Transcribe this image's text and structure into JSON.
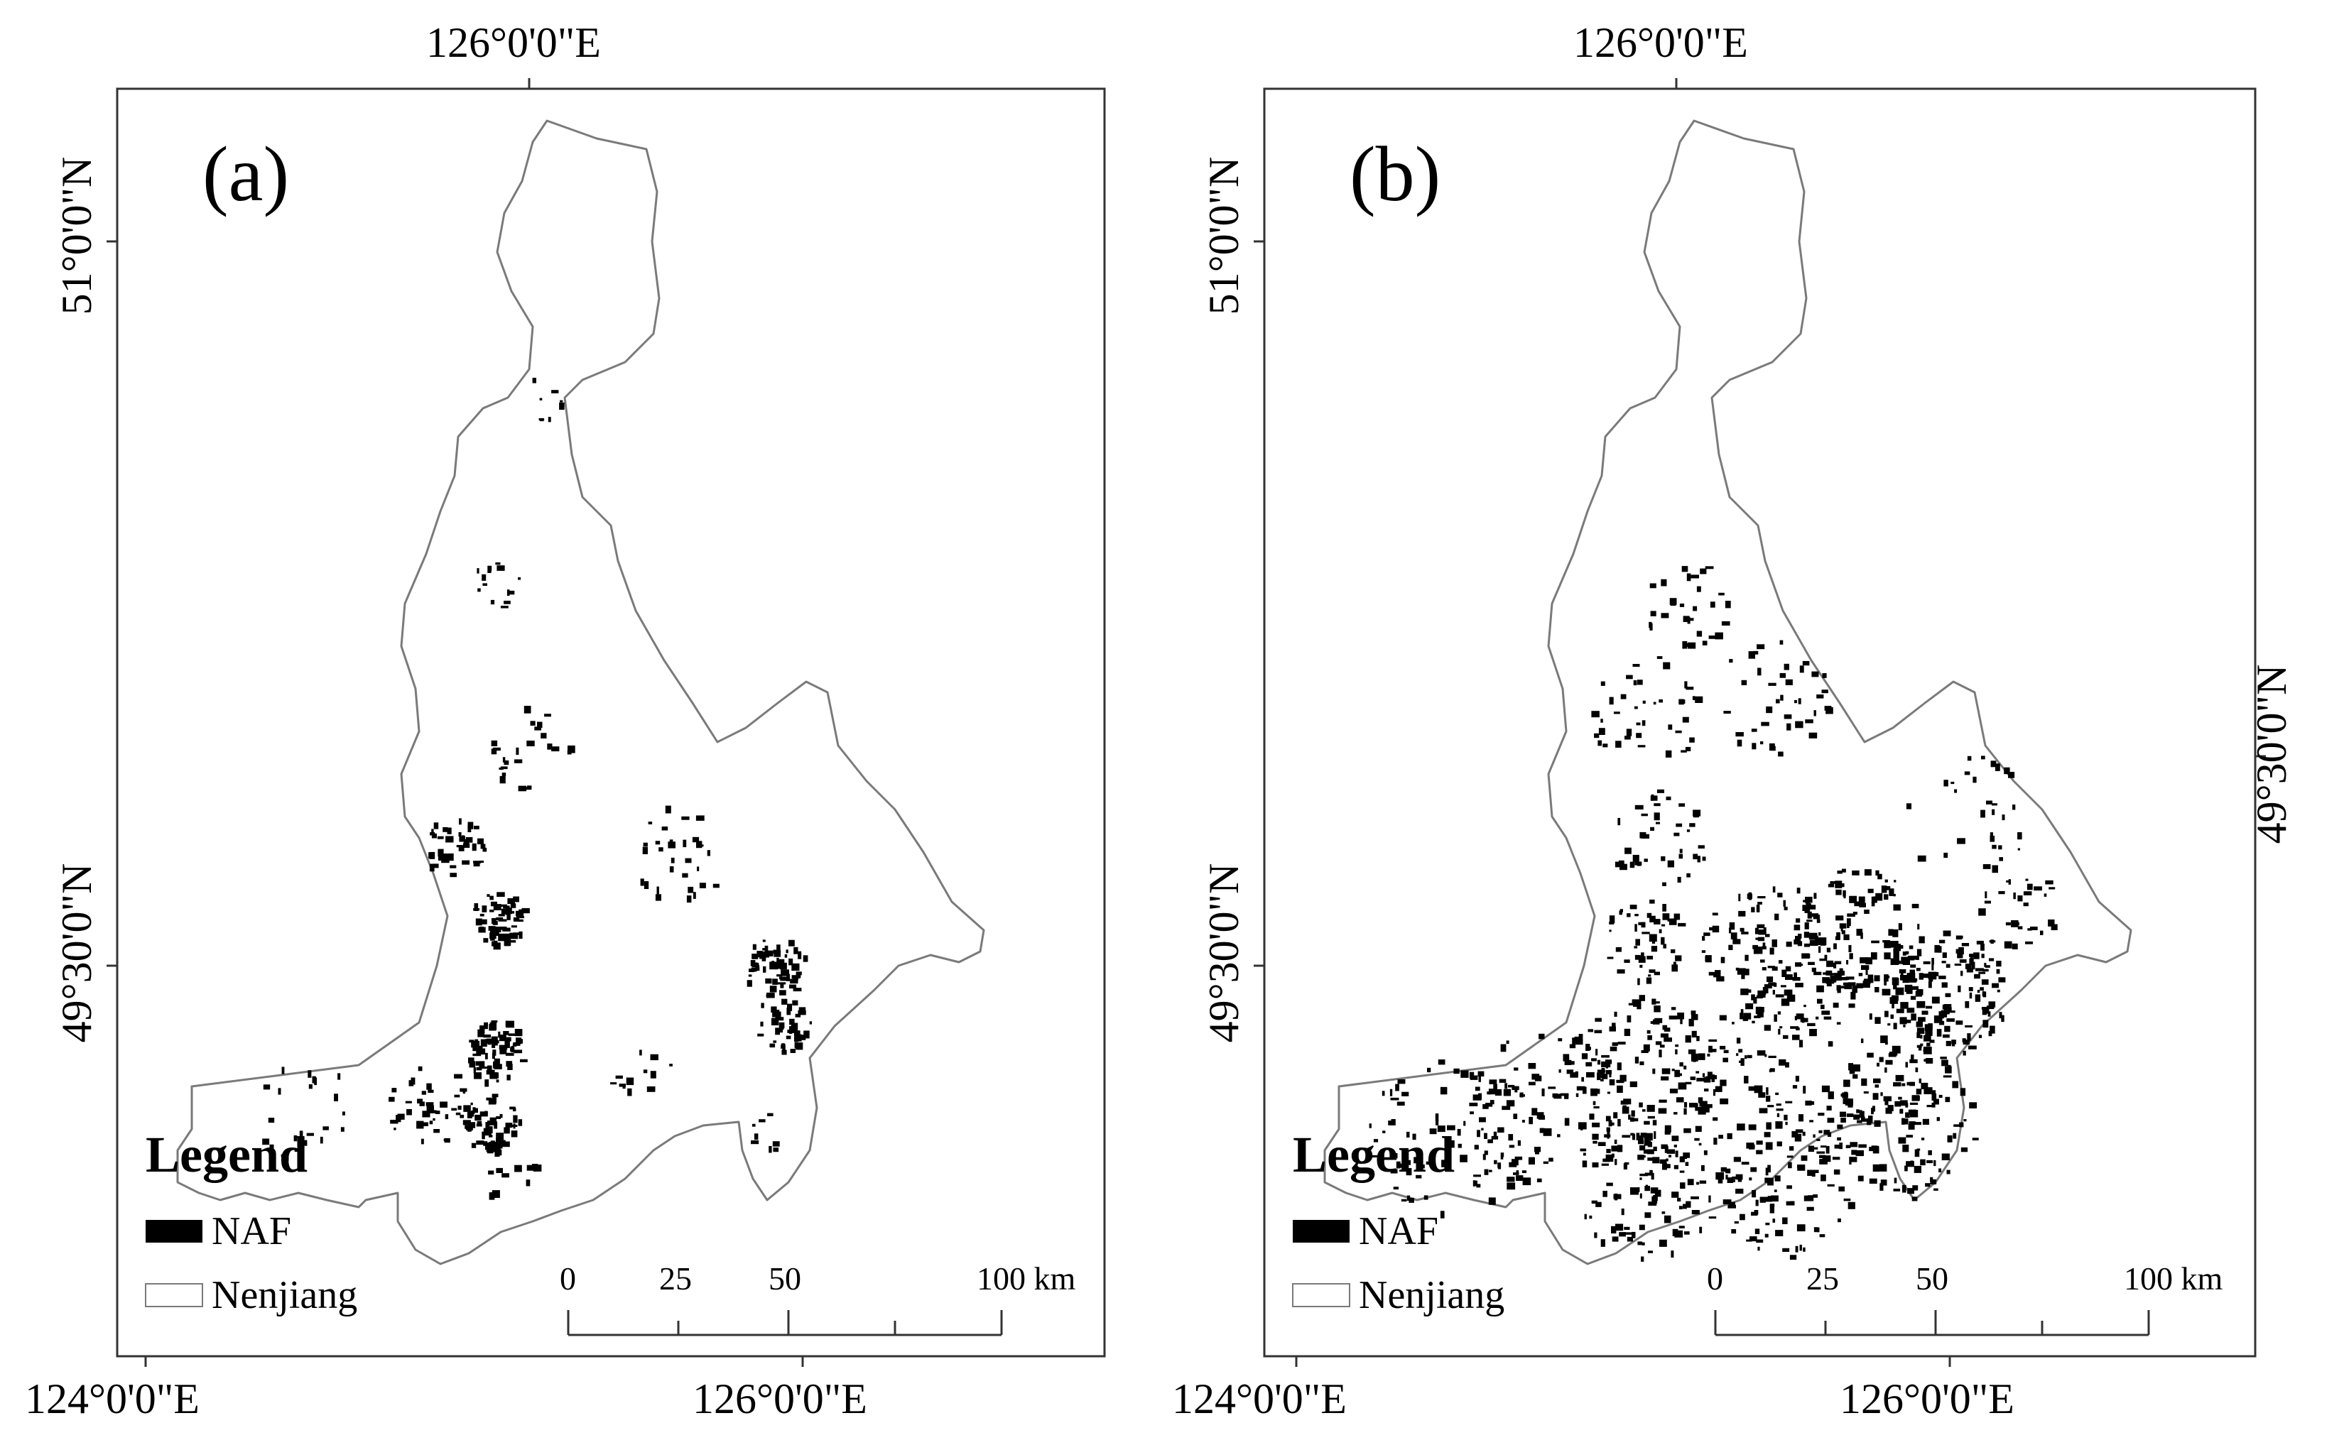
{
  "panels": [
    {
      "id": "a",
      "label": "(a)",
      "coords": {
        "top_lon": "126°0'0\"E",
        "left_lat_upper": "51°0'0\"N",
        "left_lat_lower": "49°30'0\"N",
        "bottom_lon_left": "124°0'0\"E",
        "bottom_lon_right": "126°0'0\"E"
      },
      "legend": {
        "title": "Legend",
        "items": [
          {
            "label": "NAF",
            "swatch": "#000000",
            "kind": "fill"
          },
          {
            "label": "Nenjiang",
            "swatch": "#ffffff",
            "kind": "outline"
          }
        ]
      },
      "scalebar": {
        "ticks": [
          "0",
          "25",
          "50",
          "100 km"
        ]
      }
    },
    {
      "id": "b",
      "label": "(b)",
      "coords": {
        "top_lon": "126°0'0\"E",
        "left_lat_upper": "51°0'0\"N",
        "left_lat_lower": "49°30'0\"N",
        "right_lat": "49°30'0\"N",
        "bottom_lon_left": "124°0'0\"E",
        "bottom_lon_right": "126°0'0\"E"
      },
      "legend": {
        "title": "Legend",
        "items": [
          {
            "label": "NAF",
            "swatch": "#000000",
            "kind": "fill"
          },
          {
            "label": "Nenjiang",
            "swatch": "#ffffff",
            "kind": "outline"
          }
        ]
      },
      "scalebar": {
        "ticks": [
          "0",
          "25",
          "50",
          "100 km"
        ]
      }
    }
  ],
  "colors": {
    "boundary": "#7a7a7a",
    "frame": "#333333",
    "naf": "#000000",
    "background": "#ffffff"
  }
}
